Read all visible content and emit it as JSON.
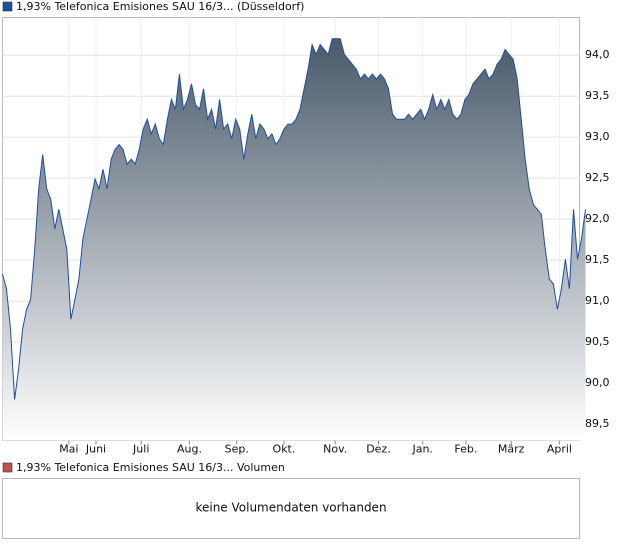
{
  "chart_data": {
    "type": "area",
    "series": [
      {
        "name": "1,93% Telefonica Emisiones SAU 16/3... (Düsseldorf)",
        "color": "#1f4fa0",
        "values": [
          91.33,
          91.15,
          90.66,
          89.8,
          90.17,
          90.66,
          90.9,
          91.02,
          91.63,
          92.37,
          92.79,
          92.37,
          92.24,
          91.88,
          92.12,
          91.88,
          91.63,
          90.78,
          91.02,
          91.27,
          91.76,
          92.0,
          92.24,
          92.49,
          92.37,
          92.61,
          92.37,
          92.73,
          92.85,
          92.91,
          92.85,
          92.67,
          92.73,
          92.67,
          92.85,
          93.1,
          93.22,
          93.04,
          93.16,
          92.98,
          92.91,
          93.22,
          93.46,
          93.34,
          93.77,
          93.34,
          93.46,
          93.65,
          93.4,
          93.34,
          93.59,
          93.22,
          93.34,
          93.1,
          93.46,
          93.1,
          93.16,
          92.98,
          93.22,
          93.1,
          92.73,
          93.04,
          93.28,
          92.98,
          93.16,
          93.1,
          92.98,
          93.04,
          92.91,
          92.98,
          93.1,
          93.16,
          93.16,
          93.22,
          93.34,
          93.59,
          93.83,
          94.13,
          94.01,
          94.13,
          94.07,
          94.01,
          94.2,
          94.2,
          94.2,
          94.01,
          93.95,
          93.89,
          93.83,
          93.71,
          93.77,
          93.71,
          93.77,
          93.71,
          93.77,
          93.71,
          93.59,
          93.28,
          93.22,
          93.22,
          93.22,
          93.28,
          93.22,
          93.28,
          93.34,
          93.22,
          93.34,
          93.52,
          93.34,
          93.46,
          93.34,
          93.46,
          93.28,
          93.22,
          93.28,
          93.46,
          93.52,
          93.65,
          93.71,
          93.77,
          93.83,
          93.71,
          93.77,
          93.89,
          93.95,
          94.07,
          94.01,
          93.95,
          93.71,
          93.22,
          92.73,
          92.37,
          92.18,
          92.12,
          92.06,
          91.63,
          91.27,
          91.21,
          90.9,
          91.15,
          91.51,
          91.15,
          92.12,
          91.51,
          91.76,
          92.12
        ]
      }
    ],
    "area_color": "#4a5a6a",
    "xlim": [
      0,
      143.5
    ],
    "xticks": [
      {
        "value": 16.5,
        "label": "Mai"
      },
      {
        "value": 23.25,
        "label": "Juni"
      },
      {
        "value": 34.5,
        "label": "Juli"
      },
      {
        "value": 46.5,
        "label": "Aug."
      },
      {
        "value": 58.25,
        "label": "Sep."
      },
      {
        "value": 70,
        "label": "Okt."
      },
      {
        "value": 82.75,
        "label": "Nov."
      },
      {
        "value": 93.5,
        "label": "Dez."
      },
      {
        "value": 104.5,
        "label": "Jan."
      },
      {
        "value": 115.25,
        "label": "Feb."
      },
      {
        "value": 126.5,
        "label": "März"
      },
      {
        "value": 138.5,
        "label": "April"
      }
    ],
    "ylim": [
      89.3,
      94.46
    ],
    "yticks": [
      {
        "value": 89.5,
        "label": "89,5"
      },
      {
        "value": 90,
        "label": "90,0"
      },
      {
        "value": 90.5,
        "label": "90,5"
      },
      {
        "value": 91,
        "label": "91,0"
      },
      {
        "value": 91.5,
        "label": "91,5"
      },
      {
        "value": 92,
        "label": "92,0"
      },
      {
        "value": 92.5,
        "label": "92,5"
      },
      {
        "value": 93,
        "label": "93,0"
      },
      {
        "value": 93.5,
        "label": "93,5"
      },
      {
        "value": 94,
        "label": "94,0"
      }
    ],
    "grid": true
  },
  "volume_panel": {
    "legend": "1,93% Telefonica Emisiones SAU 16/3... Volumen",
    "legend_color": "#c0504d",
    "message": "keine Volumendaten vorhanden"
  }
}
